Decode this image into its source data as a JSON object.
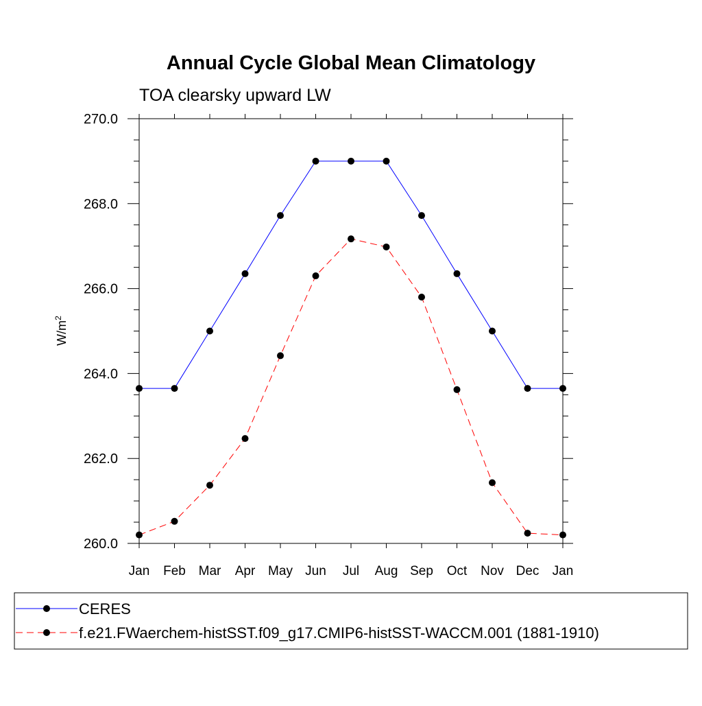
{
  "chart_data": {
    "type": "line",
    "title": "Annual Cycle Global Mean Climatology",
    "subtitle": "TOA clearsky upward LW",
    "ylabel": "W/m",
    "ylabel_sup": "2",
    "xlabel": "",
    "categories": [
      "Jan",
      "Feb",
      "Mar",
      "Apr",
      "May",
      "Jun",
      "Jul",
      "Aug",
      "Sep",
      "Oct",
      "Nov",
      "Dec",
      "Jan"
    ],
    "ylim": [
      260.0,
      270.0
    ],
    "yticks": [
      "260.0",
      "262.0",
      "264.0",
      "266.0",
      "268.0",
      "270.0"
    ],
    "grid": false,
    "legend_position": "bottom",
    "series": [
      {
        "name": "CERES",
        "color": "#0000ff",
        "dash": "solid",
        "marker": "filled-circle",
        "values": [
          263.65,
          263.65,
          265.0,
          266.35,
          267.72,
          269.0,
          269.0,
          269.0,
          267.72,
          266.35,
          265.0,
          263.65,
          263.65
        ]
      },
      {
        "name": "f.e21.FWaerchem-histSST.f09_g17.CMIP6-histSST-WACCM.001 (1881-1910)",
        "color": "#ff0000",
        "dash": "dashed",
        "marker": "filled-circle",
        "values": [
          260.2,
          260.52,
          261.37,
          262.47,
          264.42,
          266.3,
          267.17,
          266.98,
          265.8,
          263.62,
          261.43,
          260.24,
          260.2
        ]
      }
    ]
  }
}
